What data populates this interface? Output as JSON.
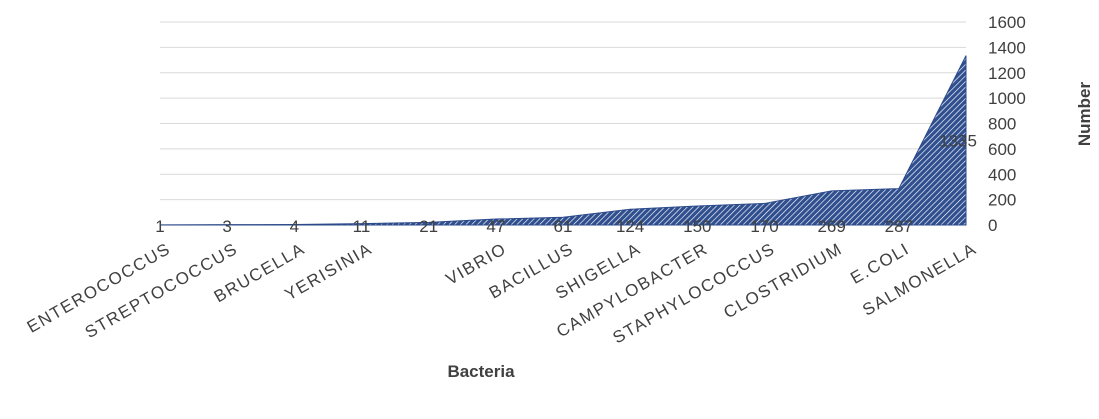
{
  "chart_data": {
    "type": "area",
    "categories": [
      "ENTEROCOCCUS",
      "STREPTOCOCCUS",
      "BRUCELLA",
      "YERISINIA",
      "",
      "VIBRIO",
      "BACILLUS",
      "SHIGELLA",
      "CAMPYLOBACTER",
      "STAPHYLOCOCCUS",
      "CLOSTRIDIUM",
      "E.COLI",
      "SALMONELLA"
    ],
    "values": [
      1,
      3,
      4,
      11,
      21,
      47,
      61,
      124,
      150,
      170,
      269,
      287,
      1335
    ],
    "xlabel": "Bacteria",
    "ylabel": "Number",
    "ylim": [
      0,
      1600
    ],
    "yticks": [
      0,
      200,
      400,
      600,
      800,
      1000,
      1200,
      1400,
      1600
    ],
    "y_axis_position": "right",
    "grid": true,
    "legend": "none",
    "data_labels": true,
    "colors": {
      "fill": "#2f4f8f",
      "hatch": "#ffffff",
      "edge": "#2b4a8a",
      "grid": "#d9d9d9",
      "text": "#404040"
    }
  }
}
